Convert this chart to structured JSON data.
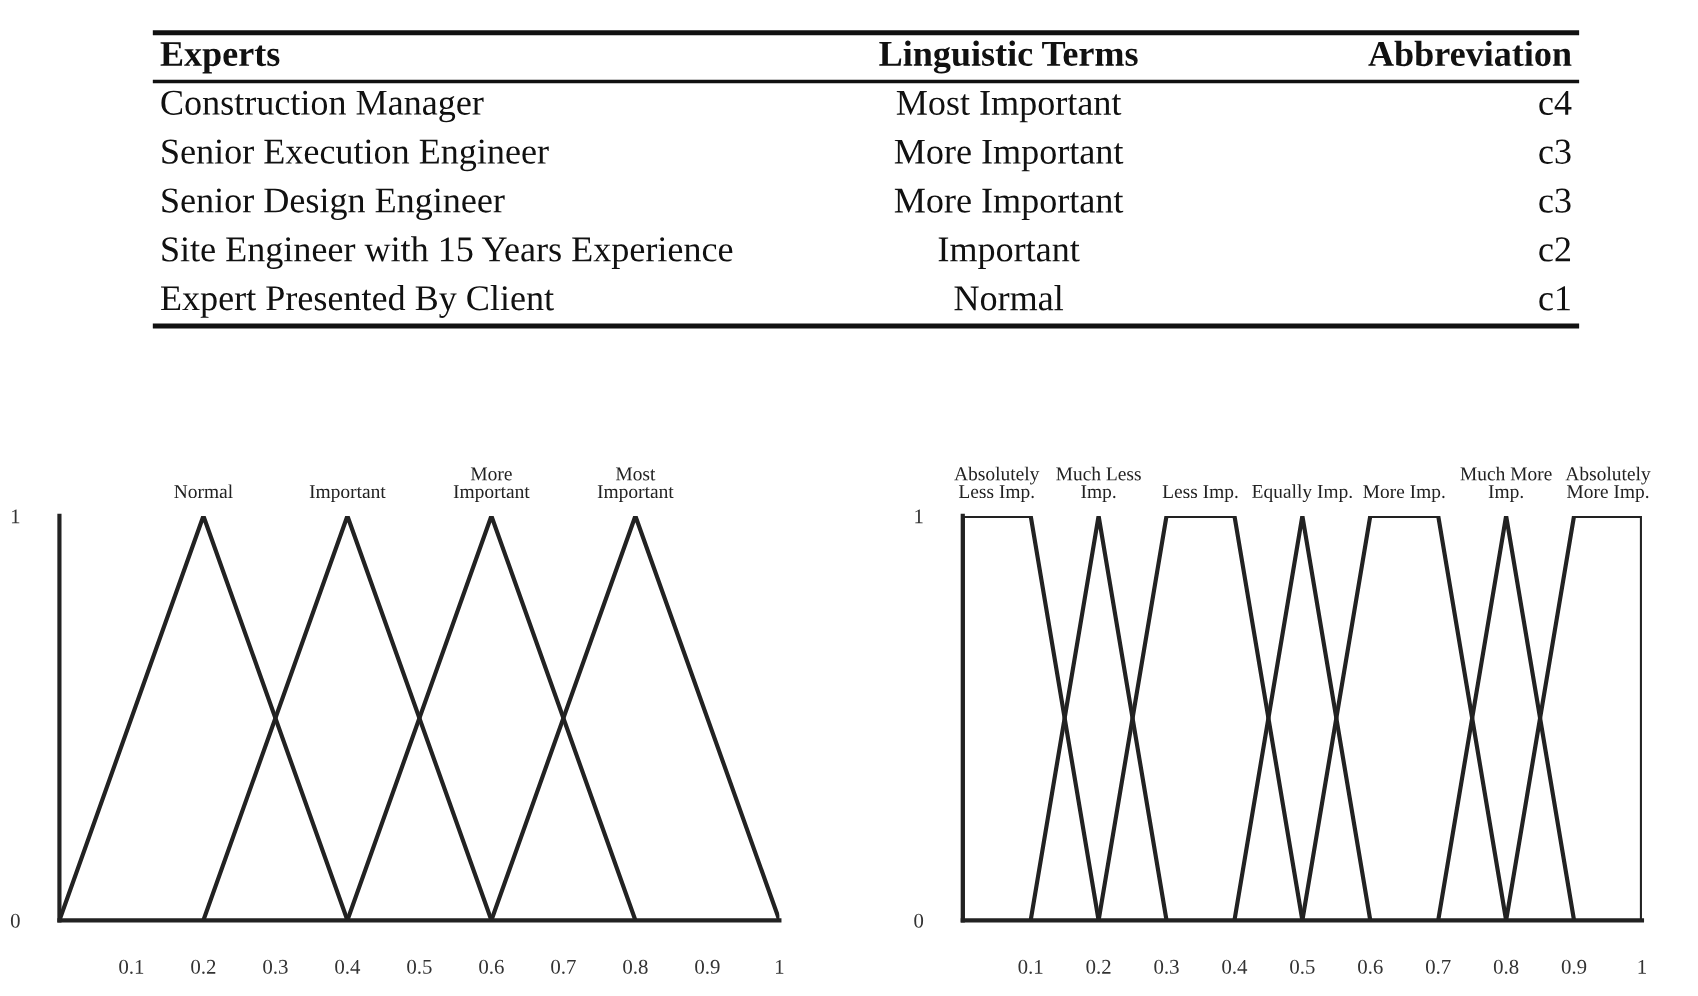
{
  "chart_data": [
    {
      "type": "other",
      "annotations": [
        "Experts",
        "Linguistic Terms",
        "Abbreviation",
        "Construction Manager",
        "Most Important",
        "c4",
        "Senior Execution Engineer",
        "More Important",
        "c3",
        "Senior Design Engineer",
        "More Important",
        "c3",
        "Site Engineer with 15 Years Experience",
        "Important",
        "c2",
        "Expert Presented By Client",
        "Normal",
        "c1"
      ]
    },
    {
      "type": "line",
      "xlim": [
        0,
        1
      ],
      "ylim": [
        0,
        1
      ],
      "xticks": [
        0.1,
        0.2,
        0.3,
        0.4,
        0.5,
        0.6,
        0.7,
        0.8,
        0.9,
        1
      ],
      "yticks": [
        0,
        1
      ],
      "grid": false,
      "legend": false,
      "series": [
        {
          "name": "Normal",
          "color": "#222222",
          "x": [
            0,
            0.2,
            0.4
          ],
          "values": [
            0,
            1,
            0
          ]
        },
        {
          "name": "Important",
          "color": "#222222",
          "x": [
            0.2,
            0.4,
            0.6
          ],
          "values": [
            0,
            1,
            0
          ]
        },
        {
          "name": "More\nImportant",
          "color": "#222222",
          "x": [
            0.4,
            0.6,
            0.8
          ],
          "values": [
            0,
            1,
            0
          ]
        },
        {
          "name": "Most\nImportant",
          "color": "#222222",
          "x": [
            0.6,
            0.8,
            1
          ],
          "values": [
            0,
            1,
            0
          ]
        }
      ]
    },
    {
      "type": "line",
      "xlim": [
        0,
        1
      ],
      "ylim": [
        0,
        1
      ],
      "xticks": [
        0.1,
        0.2,
        0.3,
        0.4,
        0.5,
        0.6,
        0.7,
        0.8,
        0.9,
        1
      ],
      "yticks": [
        0,
        1
      ],
      "grid": false,
      "legend": false,
      "series": [
        {
          "name": "Absolutely\nLess Imp.",
          "color": "#222222",
          "x": [
            0,
            0,
            0.1,
            0.2
          ],
          "values": [
            0,
            1,
            1,
            0
          ]
        },
        {
          "name": "Much Less\nImp.",
          "color": "#222222",
          "x": [
            0.1,
            0.2,
            0.3
          ],
          "values": [
            0,
            1,
            0
          ]
        },
        {
          "name": "Less Imp.",
          "color": "#222222",
          "x": [
            0.2,
            0.3,
            0.4,
            0.5
          ],
          "values": [
            0,
            1,
            1,
            0
          ]
        },
        {
          "name": "Equally Imp.",
          "color": "#222222",
          "x": [
            0.4,
            0.5,
            0.6
          ],
          "values": [
            0,
            1,
            0
          ]
        },
        {
          "name": "More Imp.",
          "color": "#222222",
          "x": [
            0.5,
            0.6,
            0.7,
            0.8
          ],
          "values": [
            0,
            1,
            1,
            0
          ]
        },
        {
          "name": "Much More\nImp.",
          "color": "#222222",
          "x": [
            0.7,
            0.8,
            0.9
          ],
          "values": [
            0,
            1,
            0
          ]
        },
        {
          "name": "Absolutely\nMore Imp.",
          "color": "#222222",
          "x": [
            0.8,
            0.9,
            1,
            1
          ],
          "values": [
            0,
            1,
            1,
            0
          ]
        }
      ]
    }
  ]
}
